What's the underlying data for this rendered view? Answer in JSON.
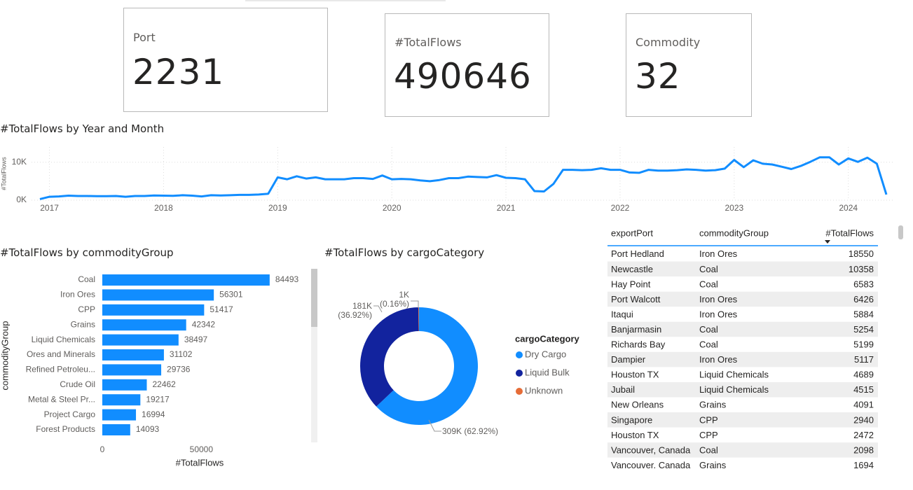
{
  "cards": [
    {
      "label": "Port",
      "value": 2231
    },
    {
      "label": "#TotalFlows",
      "value": 490646
    },
    {
      "label": "Commodity",
      "value": 32
    }
  ],
  "chart_data": [
    {
      "type": "line",
      "title": "#TotalFlows by Year and Month",
      "y_label": "#TotalFlows",
      "color": "#118DFF",
      "categories": [
        null,
        "2017",
        null,
        null,
        null,
        null,
        null,
        null,
        null,
        null,
        null,
        null,
        null,
        "2018",
        null,
        null,
        null,
        null,
        null,
        null,
        null,
        null,
        null,
        null,
        null,
        "2019",
        null,
        null,
        null,
        null,
        null,
        null,
        null,
        null,
        null,
        null,
        null,
        "2020",
        null,
        null,
        null,
        null,
        null,
        null,
        null,
        null,
        null,
        null,
        null,
        "2021",
        null,
        null,
        null,
        null,
        null,
        null,
        null,
        null,
        null,
        null,
        null,
        "2022",
        null,
        null,
        null,
        null,
        null,
        null,
        null,
        null,
        null,
        null,
        null,
        "2023",
        null,
        null,
        null,
        null,
        null,
        null,
        null,
        null,
        null,
        null,
        null,
        "2024",
        null,
        null,
        null,
        null
      ],
      "values": [
        300,
        900,
        1000,
        1200,
        1100,
        1100,
        1050,
        1050,
        1100,
        900,
        1100,
        1100,
        1250,
        1200,
        1150,
        1300,
        1200,
        1000,
        1300,
        1250,
        1300,
        1400,
        1400,
        1500,
        1700,
        6000,
        5500,
        6300,
        5700,
        6000,
        5500,
        5500,
        5500,
        5800,
        5800,
        5600,
        6500,
        5500,
        5600,
        5500,
        5200,
        5000,
        5300,
        5800,
        5800,
        6200,
        6100,
        6000,
        6600,
        5900,
        5800,
        5500,
        2400,
        2300,
        4300,
        8000,
        8000,
        7900,
        8000,
        8400,
        8000,
        8000,
        7300,
        7200,
        8000,
        7800,
        7800,
        7900,
        8100,
        8000,
        7800,
        7900,
        8300,
        10600,
        8700,
        10500,
        9600,
        9400,
        8800,
        8200,
        9000,
        10100,
        11300,
        11300,
        9400,
        11000,
        10100,
        11200,
        9600,
        1500
      ],
      "ylim": [
        0,
        14000
      ],
      "yticks": [
        {
          "value": 0,
          "label": "0K"
        },
        {
          "value": 10000,
          "label": "10K"
        }
      ],
      "grid": true
    },
    {
      "type": "bar",
      "orientation": "horizontal",
      "title": "#TotalFlows by commodityGroup",
      "x_label": "#TotalFlows",
      "y_label": "commodityGroup",
      "color": "#118DFF",
      "categories": [
        "Coal",
        "Iron Ores",
        "CPP",
        "Grains",
        "Liquid Chemicals",
        "Ores and Minerals",
        "Refined Petroleu...",
        "Crude Oil",
        "Metal & Steel Pr...",
        "Project Cargo",
        "Forest Products"
      ],
      "values": [
        84493,
        56301,
        51417,
        42342,
        38497,
        31102,
        29736,
        22462,
        19217,
        16994,
        14093
      ],
      "xlim": [
        0,
        104000
      ],
      "xticks": [
        0,
        50000
      ]
    },
    {
      "type": "pie",
      "title": "#TotalFlows by cargoCategory",
      "legend_title": "cargoCategory",
      "legend": "right",
      "categories": [
        "Dry Cargo",
        "Liquid Bulk",
        "Unknown"
      ],
      "colors": [
        "#118DFF",
        "#12239E",
        "#E66C37"
      ],
      "values": [
        62.92,
        36.92,
        0.16
      ],
      "value_labels": [
        "309K (62.92%)",
        "181K (36.92%)",
        "1K (0.16%)"
      ]
    }
  ],
  "table": {
    "columns": [
      "exportPort",
      "commodityGroup",
      "#TotalFlows"
    ],
    "rows": [
      [
        "Port Hedland",
        "Iron Ores",
        18550
      ],
      [
        "Newcastle",
        "Coal",
        10358
      ],
      [
        "Hay Point",
        "Coal",
        6583
      ],
      [
        "Port Walcott",
        "Iron Ores",
        6426
      ],
      [
        "Itaqui",
        "Iron Ores",
        5884
      ],
      [
        "Banjarmasin",
        "Coal",
        5254
      ],
      [
        "Richards Bay",
        "Coal",
        5199
      ],
      [
        "Dampier",
        "Iron Ores",
        5117
      ],
      [
        "Houston TX",
        "Liquid Chemicals",
        4689
      ],
      [
        "Jubail",
        "Liquid Chemicals",
        4515
      ],
      [
        "New Orleans",
        "Grains",
        4091
      ],
      [
        "Singapore",
        "CPP",
        2940
      ],
      [
        "Houston TX",
        "CPP",
        2472
      ],
      [
        "Vancouver, Canada",
        "Coal",
        2098
      ],
      [
        "Vancouver. Canada",
        "Grains",
        1694
      ]
    ]
  }
}
